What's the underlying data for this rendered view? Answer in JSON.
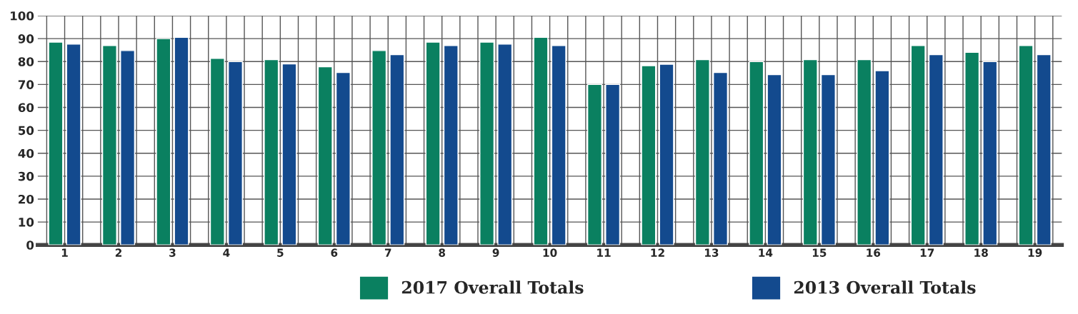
{
  "chart_data": {
    "type": "bar",
    "categories": [
      "1",
      "2",
      "3",
      "4",
      "5",
      "6",
      "7",
      "8",
      "9",
      "10",
      "11",
      "12",
      "13",
      "14",
      "15",
      "16",
      "17",
      "18",
      "19"
    ],
    "series": [
      {
        "name": "2017 Overall Totals",
        "color": "#0a8060",
        "values": [
          88.5,
          87.0,
          90.0,
          81.4,
          80.8,
          77.7,
          84.8,
          88.5,
          88.5,
          90.6,
          70.0,
          78.2,
          80.8,
          80.0,
          80.8,
          80.8,
          87.0,
          84.0,
          87.0
        ]
      },
      {
        "name": "2013 Overall Totals",
        "color": "#134a8e",
        "values": [
          87.6,
          84.8,
          90.6,
          80.0,
          79.0,
          75.2,
          83.0,
          87.0,
          87.6,
          87.0,
          70.0,
          78.8,
          75.2,
          74.3,
          74.3,
          76.0,
          83.0,
          80.0,
          83.0
        ]
      }
    ],
    "ylim": [
      0,
      100
    ],
    "yticks": [
      0,
      10,
      20,
      30,
      40,
      50,
      60,
      70,
      80,
      90,
      100
    ],
    "grid": true,
    "legend": "bottom"
  }
}
